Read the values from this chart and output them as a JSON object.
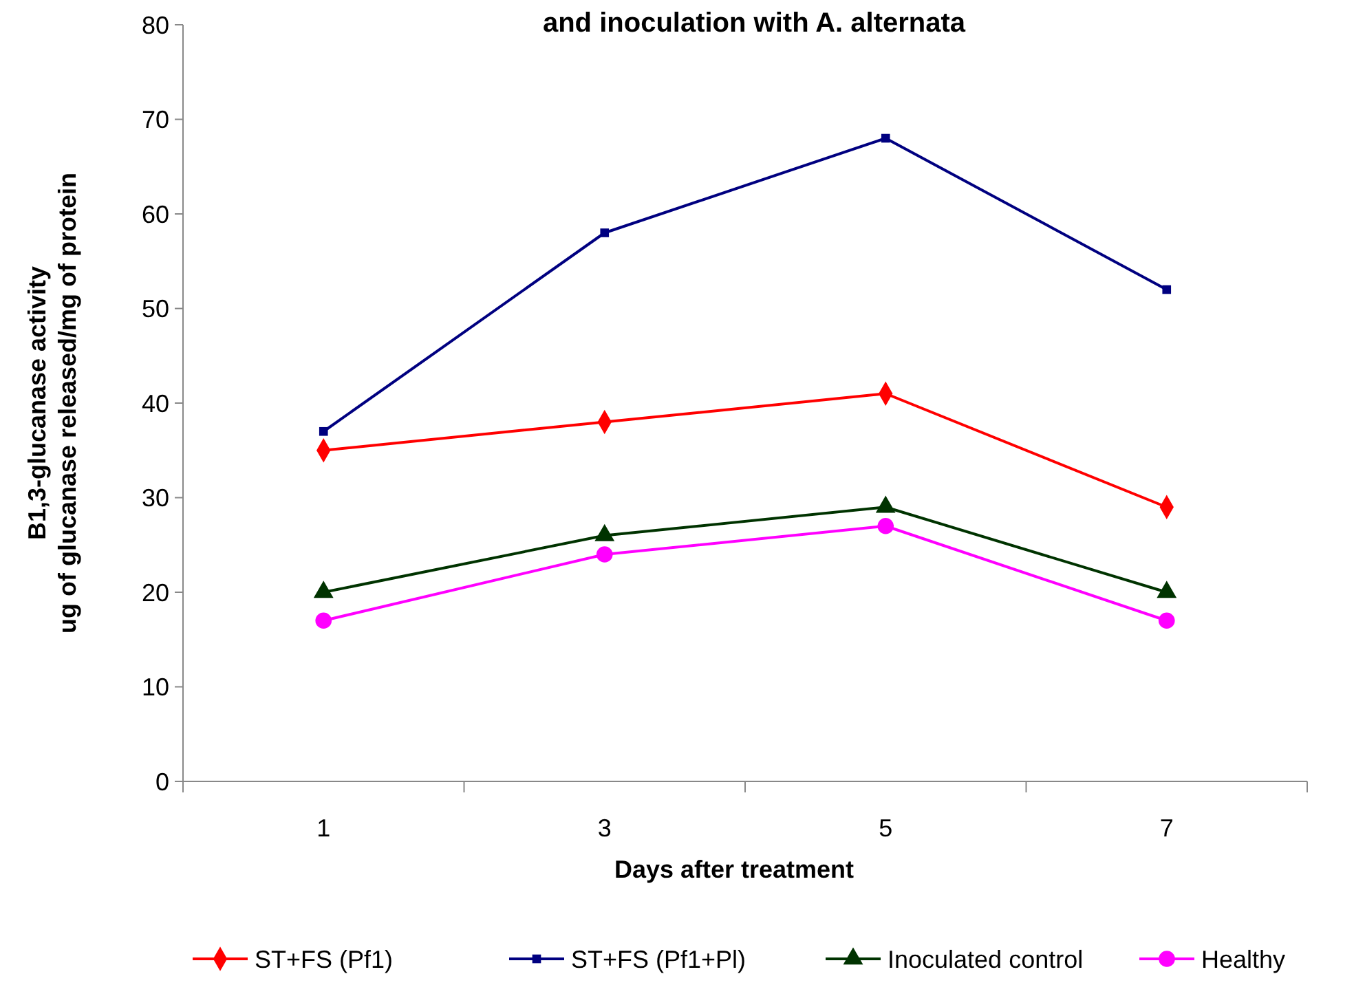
{
  "chart_data": {
    "type": "line",
    "title": "and inoculation with A. alternata",
    "xlabel": "Days after treatment",
    "ylabel": "B1,3-glucanase activity\nug of glucanase released/mg of  protein",
    "categories": [
      "1",
      "3",
      "5",
      "7"
    ],
    "series": [
      {
        "name": "ST+FS (Pf1)",
        "color": "#ff0000",
        "marker": "diamond",
        "values": [
          35,
          38,
          41,
          29
        ]
      },
      {
        "name": "ST+FS (Pf1+Pl)",
        "color": "#000080",
        "marker": "square",
        "values": [
          37,
          58,
          68,
          52
        ]
      },
      {
        "name": "Inoculated control",
        "color": "#003300",
        "marker": "triangle",
        "values": [
          20,
          26,
          29,
          20
        ]
      },
      {
        "name": "Healthy",
        "color": "#ff00ff",
        "marker": "circle",
        "values": [
          17,
          24,
          27,
          17
        ]
      }
    ],
    "ylim": [
      0,
      80
    ],
    "yticks": [
      0,
      10,
      20,
      30,
      40,
      50,
      60,
      70,
      80
    ],
    "grid": false,
    "legend": "bottom"
  }
}
